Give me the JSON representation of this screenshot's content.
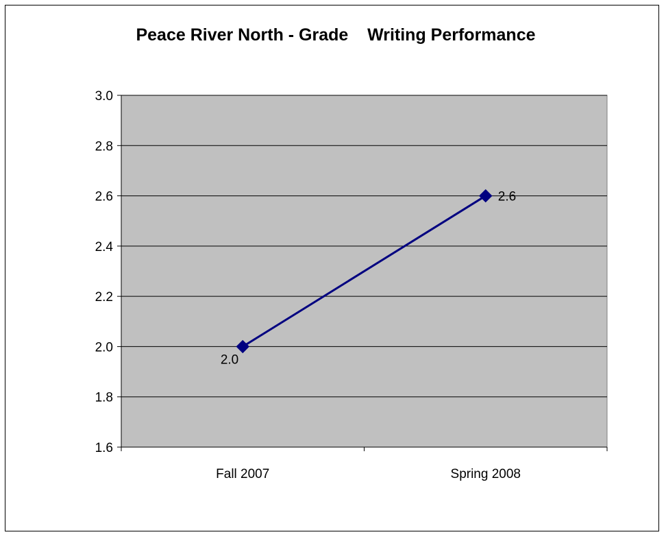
{
  "chart_data": {
    "type": "line",
    "title": "Peace River North - Grade    Writing Performance",
    "xlabel": "",
    "ylabel": "",
    "categories": [
      "Fall 2007",
      "Spring 2008"
    ],
    "series": [
      {
        "values": [
          2.0,
          2.6
        ],
        "data_labels": [
          "2.0",
          "2.6"
        ],
        "color": "#000080",
        "marker": "diamond"
      }
    ],
    "ylim": [
      1.6,
      3.0
    ],
    "yticks": [
      1.6,
      1.8,
      2.0,
      2.2,
      2.4,
      2.6,
      2.8,
      3.0
    ],
    "ytick_labels": [
      "1.6",
      "1.8",
      "2.0",
      "2.2",
      "2.4",
      "2.6",
      "2.8",
      "3.0"
    ],
    "grid": true,
    "plot_background": "#c0c0c0",
    "legend": "none"
  }
}
